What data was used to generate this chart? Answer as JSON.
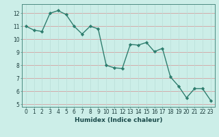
{
  "x": [
    0,
    1,
    2,
    3,
    4,
    5,
    6,
    7,
    8,
    9,
    10,
    11,
    12,
    13,
    14,
    15,
    16,
    17,
    18,
    19,
    20,
    21,
    22,
    23
  ],
  "y": [
    11.0,
    10.7,
    10.6,
    12.0,
    12.2,
    11.9,
    11.0,
    10.4,
    11.0,
    10.8,
    8.0,
    7.8,
    7.75,
    9.6,
    9.55,
    9.75,
    9.05,
    9.3,
    7.1,
    6.4,
    5.5,
    6.2,
    6.2,
    5.3
  ],
  "line_color": "#2e7d6e",
  "marker_color": "#2e7d6e",
  "bg_color": "#cceee8",
  "hgrid_color": "#d4a0a0",
  "vgrid_color": "#b8ddd8",
  "xlabel": "Humidex (Indice chaleur)",
  "xlim": [
    -0.5,
    23.5
  ],
  "ylim": [
    4.8,
    12.7
  ],
  "yticks": [
    5,
    6,
    7,
    8,
    9,
    10,
    11,
    12
  ],
  "xticks": [
    0,
    1,
    2,
    3,
    4,
    5,
    6,
    7,
    8,
    9,
    10,
    11,
    12,
    13,
    14,
    15,
    16,
    17,
    18,
    19,
    20,
    21,
    22,
    23
  ],
  "xlabel_fontsize": 6.5,
  "tick_fontsize": 5.5,
  "linewidth": 1.0,
  "markersize": 2.2
}
